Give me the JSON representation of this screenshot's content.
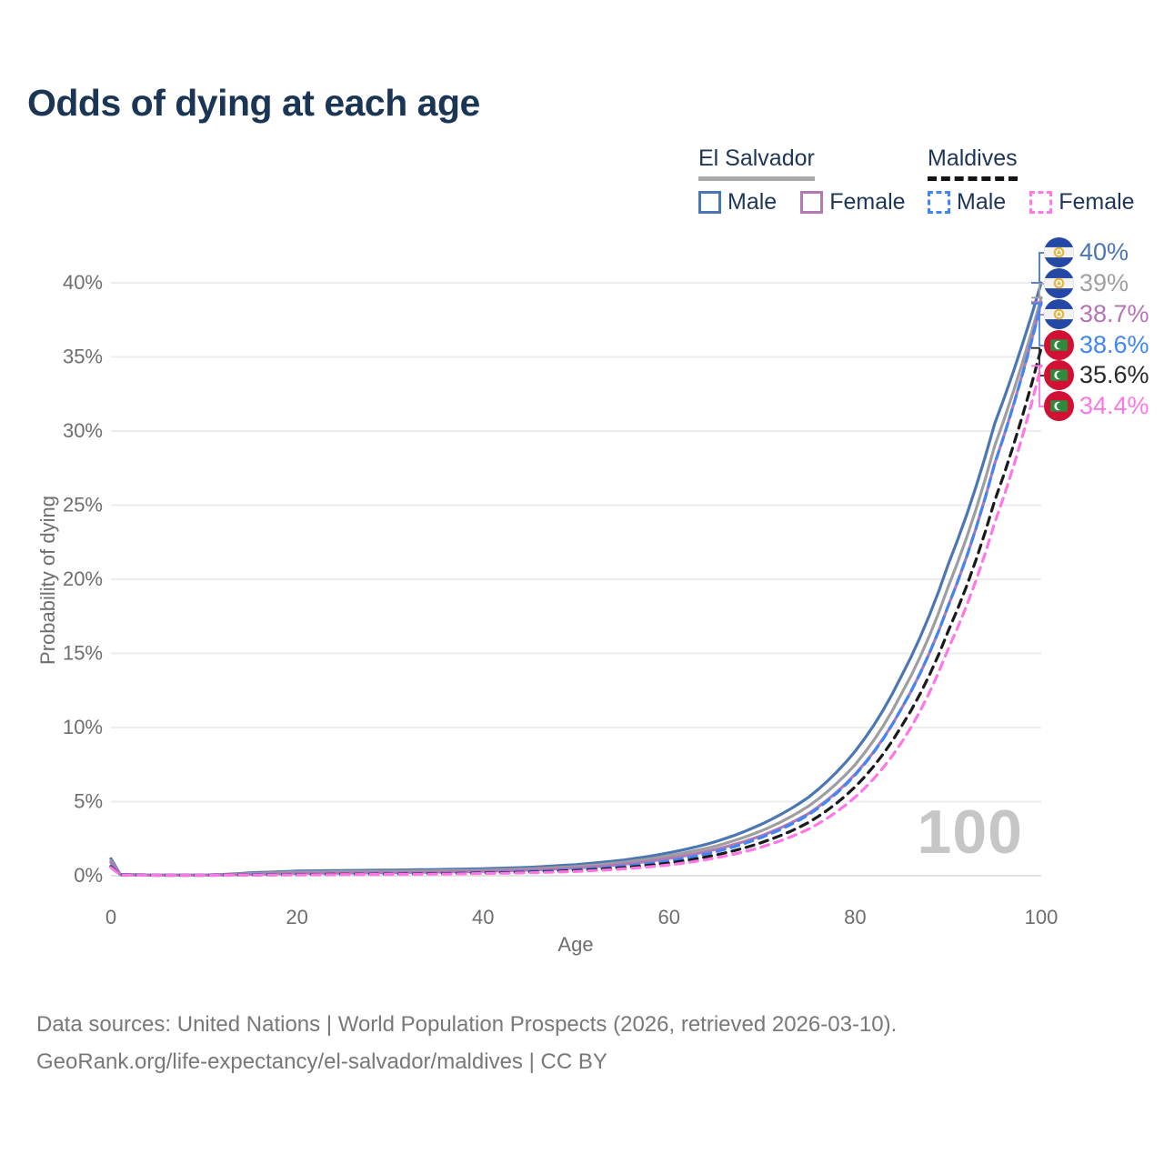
{
  "title": "Odds of dying at each age",
  "legend": {
    "groups": [
      {
        "name": "El Salvador",
        "line_style": "solid",
        "underline_color": "#a9a9a9",
        "items": [
          {
            "label": "Male",
            "color": "#4a77b4",
            "dashed": false
          },
          {
            "label": "Female",
            "color": "#b279b2",
            "dashed": false
          }
        ]
      },
      {
        "name": "Maldives",
        "line_style": "dashed",
        "underline_color": "#141414",
        "items": [
          {
            "label": "Male",
            "color": "#4285f4",
            "dashed": true
          },
          {
            "label": "Female",
            "color": "#ff7ae4",
            "dashed": true
          }
        ]
      }
    ]
  },
  "chart_data": {
    "type": "line",
    "title": "Odds of dying at each age",
    "xlabel": "Age",
    "ylabel": "Probability of dying",
    "xlim": [
      0,
      100
    ],
    "ylim_percent": [
      0,
      40
    ],
    "x_ticks": [
      "0",
      "20",
      "40",
      "60",
      "80",
      "100"
    ],
    "x_tick_values": [
      0,
      20,
      40,
      60,
      80,
      100
    ],
    "y_ticks": [
      "0%",
      "5%",
      "10%",
      "15%",
      "20%",
      "25%",
      "30%",
      "35%",
      "40%"
    ],
    "y_tick_values": [
      0,
      5,
      10,
      15,
      20,
      25,
      30,
      35,
      40
    ],
    "grid": true,
    "legend_position": "top-right",
    "watermark_age": "100",
    "series": [
      {
        "name": "El Salvador Male",
        "country": "El Salvador",
        "sex": "Male",
        "style": "solid",
        "color": "#4a77b4",
        "end_value_pct": 40.0,
        "end_label": "40%",
        "points_age_pct": [
          [
            0,
            1.15
          ],
          [
            1,
            0.09
          ],
          [
            5,
            0.05
          ],
          [
            10,
            0.05
          ],
          [
            15,
            0.2
          ],
          [
            20,
            0.32
          ],
          [
            25,
            0.35
          ],
          [
            30,
            0.38
          ],
          [
            35,
            0.42
          ],
          [
            40,
            0.47
          ],
          [
            45,
            0.57
          ],
          [
            50,
            0.75
          ],
          [
            55,
            1.05
          ],
          [
            60,
            1.55
          ],
          [
            65,
            2.3
          ],
          [
            70,
            3.5
          ],
          [
            75,
            5.3
          ],
          [
            80,
            8.4
          ],
          [
            85,
            13.5
          ],
          [
            90,
            21.0
          ],
          [
            95,
            30.5
          ],
          [
            100,
            40.0
          ]
        ]
      },
      {
        "name": "El Salvador Both sexes",
        "country": "El Salvador",
        "sex": "Both",
        "style": "solid",
        "color": "#9e9e9e",
        "end_value_pct": 39.0,
        "end_label": "39%",
        "points_age_pct": [
          [
            0,
            1.0
          ],
          [
            1,
            0.08
          ],
          [
            5,
            0.04
          ],
          [
            10,
            0.04
          ],
          [
            15,
            0.15
          ],
          [
            20,
            0.24
          ],
          [
            25,
            0.27
          ],
          [
            30,
            0.29
          ],
          [
            35,
            0.33
          ],
          [
            40,
            0.37
          ],
          [
            45,
            0.46
          ],
          [
            50,
            0.62
          ],
          [
            55,
            0.9
          ],
          [
            60,
            1.35
          ],
          [
            65,
            2.0
          ],
          [
            70,
            3.05
          ],
          [
            75,
            4.7
          ],
          [
            80,
            7.5
          ],
          [
            85,
            12.3
          ],
          [
            90,
            19.5
          ],
          [
            95,
            29.0
          ],
          [
            100,
            39.0
          ]
        ]
      },
      {
        "name": "El Salvador Female",
        "country": "El Salvador",
        "sex": "Female",
        "style": "solid",
        "color": "#b279b2",
        "end_value_pct": 38.7,
        "end_label": "38.7%",
        "points_age_pct": [
          [
            0,
            0.9
          ],
          [
            1,
            0.07
          ],
          [
            5,
            0.04
          ],
          [
            10,
            0.04
          ],
          [
            15,
            0.1
          ],
          [
            20,
            0.16
          ],
          [
            25,
            0.18
          ],
          [
            30,
            0.21
          ],
          [
            35,
            0.25
          ],
          [
            40,
            0.3
          ],
          [
            45,
            0.38
          ],
          [
            50,
            0.52
          ],
          [
            55,
            0.77
          ],
          [
            60,
            1.17
          ],
          [
            65,
            1.78
          ],
          [
            70,
            2.72
          ],
          [
            75,
            4.2
          ],
          [
            80,
            6.85
          ],
          [
            85,
            11.3
          ],
          [
            90,
            18.2
          ],
          [
            95,
            27.8
          ],
          [
            100,
            38.7
          ]
        ]
      },
      {
        "name": "Maldives Male",
        "country": "Maldives",
        "sex": "Male",
        "style": "dashed",
        "color": "#4285f4",
        "end_value_pct": 38.6,
        "end_label": "38.6%",
        "points_age_pct": [
          [
            0,
            0.65
          ],
          [
            1,
            0.05
          ],
          [
            5,
            0.03
          ],
          [
            10,
            0.03
          ],
          [
            15,
            0.06
          ],
          [
            20,
            0.09
          ],
          [
            25,
            0.11
          ],
          [
            30,
            0.13
          ],
          [
            35,
            0.16
          ],
          [
            40,
            0.21
          ],
          [
            45,
            0.28
          ],
          [
            50,
            0.41
          ],
          [
            55,
            0.64
          ],
          [
            60,
            1.0
          ],
          [
            65,
            1.62
          ],
          [
            70,
            2.6
          ],
          [
            75,
            4.12
          ],
          [
            80,
            6.8
          ],
          [
            85,
            11.3
          ],
          [
            90,
            18.2
          ],
          [
            95,
            27.8
          ],
          [
            100,
            38.6
          ]
        ]
      },
      {
        "name": "Maldives Both sexes",
        "country": "Maldives",
        "sex": "Both",
        "style": "dashed",
        "color": "#1a1a1a",
        "end_value_pct": 35.6,
        "end_label": "35.6%",
        "points_age_pct": [
          [
            0,
            0.6
          ],
          [
            1,
            0.05
          ],
          [
            5,
            0.03
          ],
          [
            10,
            0.03
          ],
          [
            15,
            0.05
          ],
          [
            20,
            0.08
          ],
          [
            25,
            0.1
          ],
          [
            30,
            0.11
          ],
          [
            35,
            0.14
          ],
          [
            40,
            0.18
          ],
          [
            45,
            0.24
          ],
          [
            50,
            0.35
          ],
          [
            55,
            0.54
          ],
          [
            60,
            0.86
          ],
          [
            65,
            1.4
          ],
          [
            70,
            2.25
          ],
          [
            75,
            3.6
          ],
          [
            80,
            6.0
          ],
          [
            85,
            10.1
          ],
          [
            90,
            16.5
          ],
          [
            95,
            25.3
          ],
          [
            100,
            35.6
          ]
        ]
      },
      {
        "name": "Maldives Female",
        "country": "Maldives",
        "sex": "Female",
        "style": "dashed",
        "color": "#ff77e7",
        "end_value_pct": 34.4,
        "end_label": "34.4%",
        "points_age_pct": [
          [
            0,
            0.55
          ],
          [
            1,
            0.04
          ],
          [
            5,
            0.03
          ],
          [
            10,
            0.03
          ],
          [
            15,
            0.04
          ],
          [
            20,
            0.06
          ],
          [
            25,
            0.08
          ],
          [
            30,
            0.09
          ],
          [
            35,
            0.11
          ],
          [
            40,
            0.15
          ],
          [
            45,
            0.2
          ],
          [
            50,
            0.29
          ],
          [
            55,
            0.46
          ],
          [
            60,
            0.73
          ],
          [
            65,
            1.2
          ],
          [
            70,
            1.95
          ],
          [
            75,
            3.15
          ],
          [
            80,
            5.3
          ],
          [
            85,
            9.0
          ],
          [
            90,
            15.3
          ],
          [
            95,
            23.8
          ],
          [
            100,
            34.4
          ]
        ]
      }
    ]
  },
  "end_labels": [
    {
      "flag": "el-salvador",
      "text": "40%",
      "color": "#4a77b4"
    },
    {
      "flag": "el-salvador",
      "text": "39%",
      "color": "#a0a0a0"
    },
    {
      "flag": "el-salvador",
      "text": "38.7%",
      "color": "#b474b4"
    },
    {
      "flag": "maldives",
      "text": "38.6%",
      "color": "#4186f5"
    },
    {
      "flag": "maldives",
      "text": "35.6%",
      "color": "#2a2a2a"
    },
    {
      "flag": "maldives",
      "text": "34.4%",
      "color": "#ff77e7"
    }
  ],
  "footer": {
    "line1": "Data sources: United Nations | World Population Prospects (2026, retrieved 2026-03-10).",
    "line2": "GeoRank.org/life-expectancy/el-salvador/maldives | CC BY"
  }
}
